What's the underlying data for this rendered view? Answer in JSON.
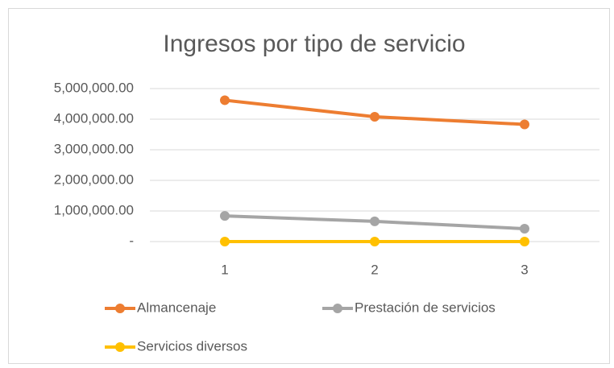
{
  "chart_data": {
    "type": "line",
    "title": "Ingresos por tipo de servicio",
    "categories": [
      "1",
      "2",
      "3"
    ],
    "series": [
      {
        "name": "Almancenaje",
        "color": "#ed7d31",
        "values": [
          4620000,
          4080000,
          3830000
        ]
      },
      {
        "name": "Prestación de servicios",
        "color": "#a5a5a5",
        "values": [
          840000,
          660000,
          420000
        ]
      },
      {
        "name": "Servicios diversos",
        "color": "#ffc000",
        "values": [
          0,
          0,
          0
        ]
      }
    ],
    "ylim": [
      0,
      5000000
    ],
    "yticks": [
      {
        "value": 0,
        "label": "-"
      },
      {
        "value": 1000000,
        "label": "1,000,000.00"
      },
      {
        "value": 2000000,
        "label": "2,000,000.00"
      },
      {
        "value": 3000000,
        "label": "3,000,000.00"
      },
      {
        "value": 4000000,
        "label": "4,000,000.00"
      },
      {
        "value": 5000000,
        "label": "5,000,000.00"
      }
    ],
    "grid": true,
    "legend": "bottom"
  }
}
